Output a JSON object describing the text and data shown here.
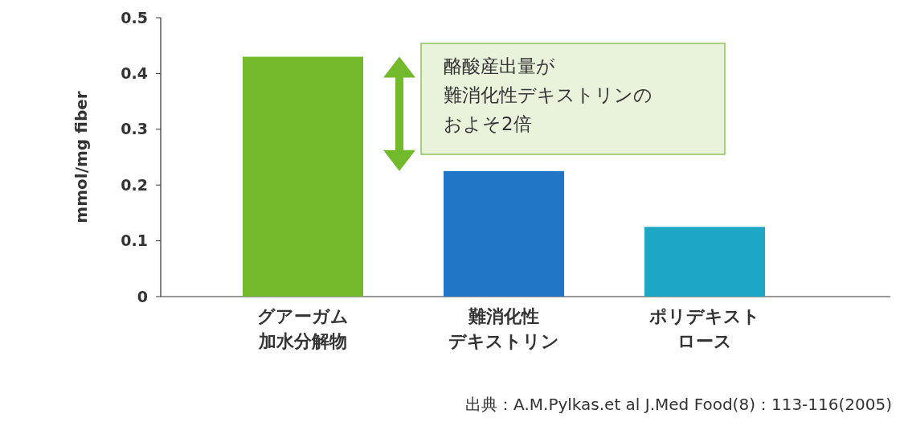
{
  "chart_data": {
    "type": "bar",
    "ylabel": "mmol/mg fiber",
    "categories": [
      "グアーガム加水分解物",
      "難消化性デキストリン",
      "ポリデキストロース"
    ],
    "values": [
      0.43,
      0.225,
      0.125
    ],
    "colors": [
      "#72b92c",
      "#2176c6",
      "#1fa8c6"
    ],
    "ylim": [
      0,
      0.5
    ],
    "yticks": [
      0,
      0.1,
      0.2,
      0.3,
      0.4,
      0.5
    ],
    "annotations": [
      "酪酸産出量が難消化性デキストリンのおよそ2倍",
      "出典：A.M.Pylkas.et al J.Med Food(8)：113-116(2005)"
    ]
  }
}
